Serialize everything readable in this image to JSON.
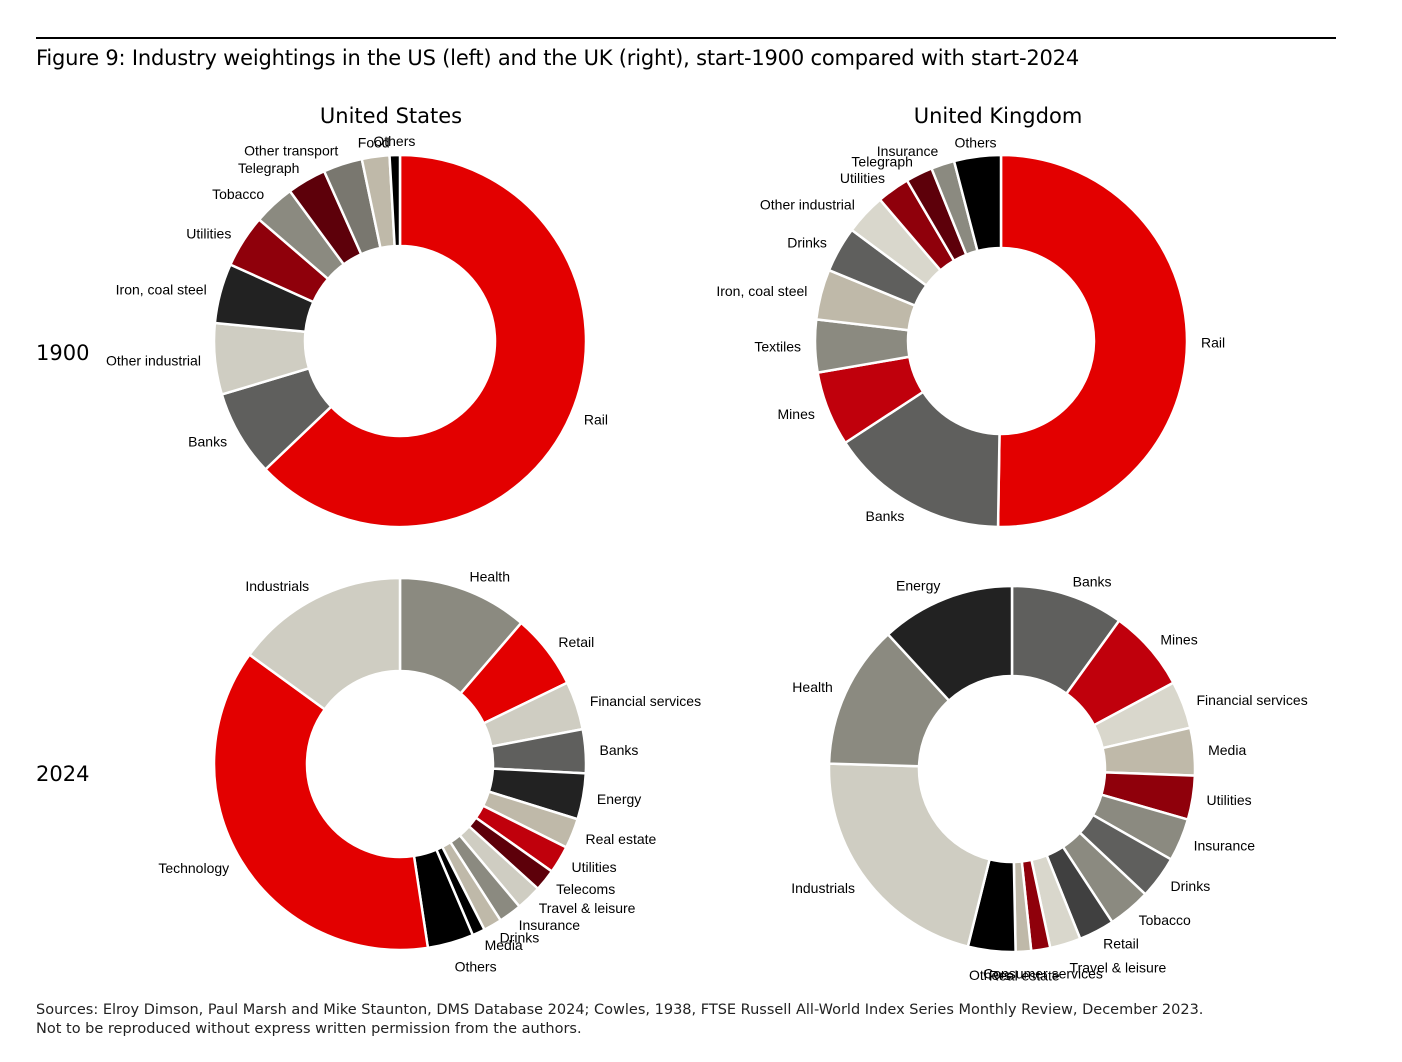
{
  "figure_title": "Figure 9: Industry weightings in the US (left) and the UK (right), start-1900 compared with start-2024",
  "headings": {
    "left": "United States",
    "right": "United Kingdom"
  },
  "years": {
    "top": "1900",
    "bottom": "2024"
  },
  "sources": {
    "line1": "Sources: Elroy Dimson, Paul Marsh and Mike Staunton, DMS Database 2024; Cowles, 1938, FTSE Russell All-World Index Series Monthly Review, December 2023.",
    "line2": "Not to be reproduced without express written permission from the authors."
  },
  "chart_data": [
    {
      "type": "pie",
      "subtype": "donut",
      "region": "United States",
      "year": "1900",
      "slices": [
        {
          "label": "Rail",
          "value": 63,
          "color": "#e30000"
        },
        {
          "label": "Banks",
          "value": 7.5,
          "color": "#5f5f5d"
        },
        {
          "label": "Other industrial",
          "value": 6.2,
          "color": "#cfcdc2"
        },
        {
          "label": "Iron, coal steel",
          "value": 5.2,
          "color": "#222222"
        },
        {
          "label": "Utilities",
          "value": 4.6,
          "color": "#8f000b"
        },
        {
          "label": "Tobacco",
          "value": 3.6,
          "color": "#8b8a80"
        },
        {
          "label": "Telegraph",
          "value": 3.4,
          "color": "#5d000a"
        },
        {
          "label": "Other transport",
          "value": 3.4,
          "color": "#79776f"
        },
        {
          "label": "Food",
          "value": 2.4,
          "color": "#bfb9a9"
        },
        {
          "label": "Others",
          "value": 0.9,
          "color": "#000000"
        }
      ]
    },
    {
      "type": "pie",
      "subtype": "donut",
      "region": "United Kingdom",
      "year": "1900",
      "slices": [
        {
          "label": "Rail",
          "value": 49.5,
          "color": "#e30000"
        },
        {
          "label": "Banks",
          "value": 15.3,
          "color": "#5f5f5d"
        },
        {
          "label": "Mines",
          "value": 6.4,
          "color": "#c0000c"
        },
        {
          "label": "Textiles",
          "value": 4.5,
          "color": "#8b8a80"
        },
        {
          "label": "Iron, coal steel",
          "value": 4.3,
          "color": "#bfb9a9"
        },
        {
          "label": "Drinks",
          "value": 3.9,
          "color": "#5f5f5d"
        },
        {
          "label": "Other industrial",
          "value": 3.5,
          "color": "#d9d7cc"
        },
        {
          "label": "Utilities",
          "value": 2.8,
          "color": "#8f000b"
        },
        {
          "label": "Telegraph",
          "value": 2.3,
          "color": "#5d000a"
        },
        {
          "label": "Insurance",
          "value": 2.0,
          "color": "#8b8a80"
        },
        {
          "label": "Others",
          "value": 4.0,
          "color": "#000000"
        }
      ]
    },
    {
      "type": "pie",
      "subtype": "donut",
      "region": "United States",
      "year": "2024",
      "slices": [
        {
          "label": "Health",
          "value": 11.3,
          "color": "#8b8a80"
        },
        {
          "label": "Retail",
          "value": 6.5,
          "color": "#e30000"
        },
        {
          "label": "Financial services",
          "value": 4.2,
          "color": "#cfcdc2"
        },
        {
          "label": "Banks",
          "value": 3.8,
          "color": "#5f5f5d"
        },
        {
          "label": "Energy",
          "value": 4.0,
          "color": "#222222"
        },
        {
          "label": "Real estate",
          "value": 2.6,
          "color": "#bfb9a9"
        },
        {
          "label": "Utilities",
          "value": 2.4,
          "color": "#c0000c"
        },
        {
          "label": "Telecoms",
          "value": 1.9,
          "color": "#5d000a"
        },
        {
          "label": "Travel & leisure",
          "value": 2.2,
          "color": "#cfcdc2"
        },
        {
          "label": "Insurance",
          "value": 2.0,
          "color": "#8b8a80"
        },
        {
          "label": "Drinks",
          "value": 1.6,
          "color": "#bfb9a9"
        },
        {
          "label": "Media",
          "value": 1.1,
          "color": "#000000"
        },
        {
          "label": "Others",
          "value": 4.0,
          "color": "#000000"
        },
        {
          "label": "Technology",
          "value": 37.4,
          "color": "#e30000"
        },
        {
          "label": "Industrials",
          "value": 15.0,
          "color": "#cfcdc2"
        }
      ]
    },
    {
      "type": "pie",
      "subtype": "donut",
      "region": "United Kingdom",
      "year": "2024",
      "slices": [
        {
          "label": "Banks",
          "value": 9.5,
          "color": "#5f5f5d"
        },
        {
          "label": "Mines",
          "value": 6.9,
          "color": "#c0000c"
        },
        {
          "label": "Financial services",
          "value": 4.0,
          "color": "#d9d7cc"
        },
        {
          "label": "Media",
          "value": 4.0,
          "color": "#bfb9a9"
        },
        {
          "label": "Utilities",
          "value": 3.7,
          "color": "#8f000b"
        },
        {
          "label": "Insurance",
          "value": 3.6,
          "color": "#8b8a80"
        },
        {
          "label": "Drinks",
          "value": 3.6,
          "color": "#5f5f5d"
        },
        {
          "label": "Tobacco",
          "value": 3.6,
          "color": "#8b8a80"
        },
        {
          "label": "Retail",
          "value": 3.0,
          "color": "#404040"
        },
        {
          "label": "Travel & leisure",
          "value": 2.6,
          "color": "#d9d7cc"
        },
        {
          "label": "Consumer services",
          "value": 1.6,
          "color": "#8f000b"
        },
        {
          "label": "Real estate",
          "value": 1.3,
          "color": "#bfb9a9"
        },
        {
          "label": "Others",
          "value": 4.0,
          "color": "#000000"
        },
        {
          "label": "Industrials",
          "value": 20.6,
          "color": "#cfcdc2"
        },
        {
          "label": "Health",
          "value": 12.1,
          "color": "#8b8a80"
        },
        {
          "label": "Energy",
          "value": 11.3,
          "color": "#222222"
        }
      ]
    }
  ]
}
